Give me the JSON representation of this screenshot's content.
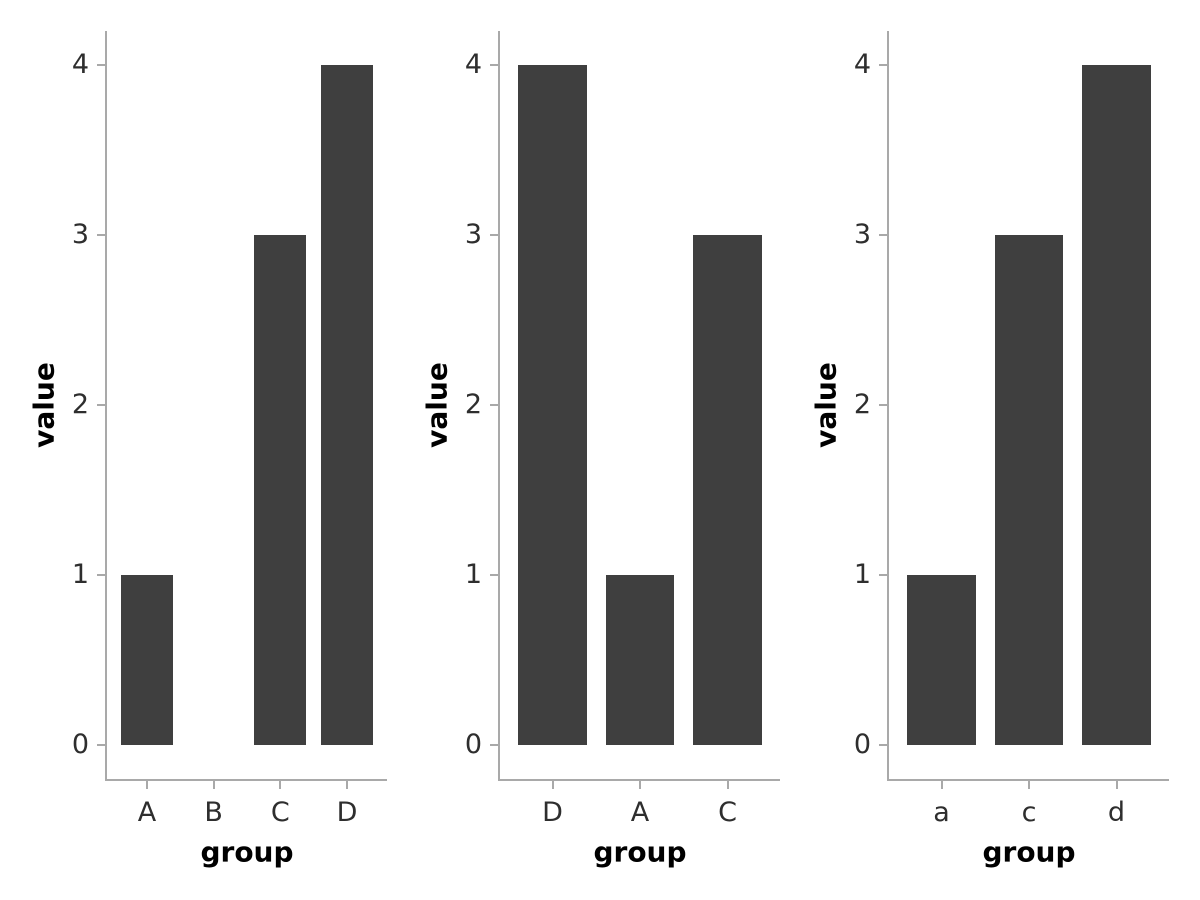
{
  "page": {
    "background": "#ffffff"
  },
  "style": {
    "bar_color": "#3f3f3f",
    "axis_color": "#a9a9a9",
    "tick_label_color": "#2e2e2e",
    "axis_title_color": "#000000"
  },
  "chart_data": [
    {
      "type": "bar",
      "categories": [
        "A",
        "B",
        "C",
        "D"
      ],
      "values": [
        1,
        0,
        3,
        4
      ],
      "title": "",
      "xlabel": "group",
      "ylabel": "value",
      "ylim": [
        0,
        4
      ],
      "yticks": [
        0,
        1,
        2,
        3,
        4
      ],
      "grid": false,
      "legend": "none"
    },
    {
      "type": "bar",
      "categories": [
        "D",
        "A",
        "C"
      ],
      "values": [
        4,
        1,
        3
      ],
      "title": "",
      "xlabel": "group",
      "ylabel": "value",
      "ylim": [
        0,
        4
      ],
      "yticks": [
        0,
        1,
        2,
        3,
        4
      ],
      "grid": false,
      "legend": "none"
    },
    {
      "type": "bar",
      "categories": [
        "a",
        "c",
        "d"
      ],
      "values": [
        1,
        3,
        4
      ],
      "title": "",
      "xlabel": "group",
      "ylabel": "value",
      "ylim": [
        0,
        4
      ],
      "yticks": [
        0,
        1,
        2,
        3,
        4
      ],
      "grid": false,
      "legend": "none"
    }
  ]
}
